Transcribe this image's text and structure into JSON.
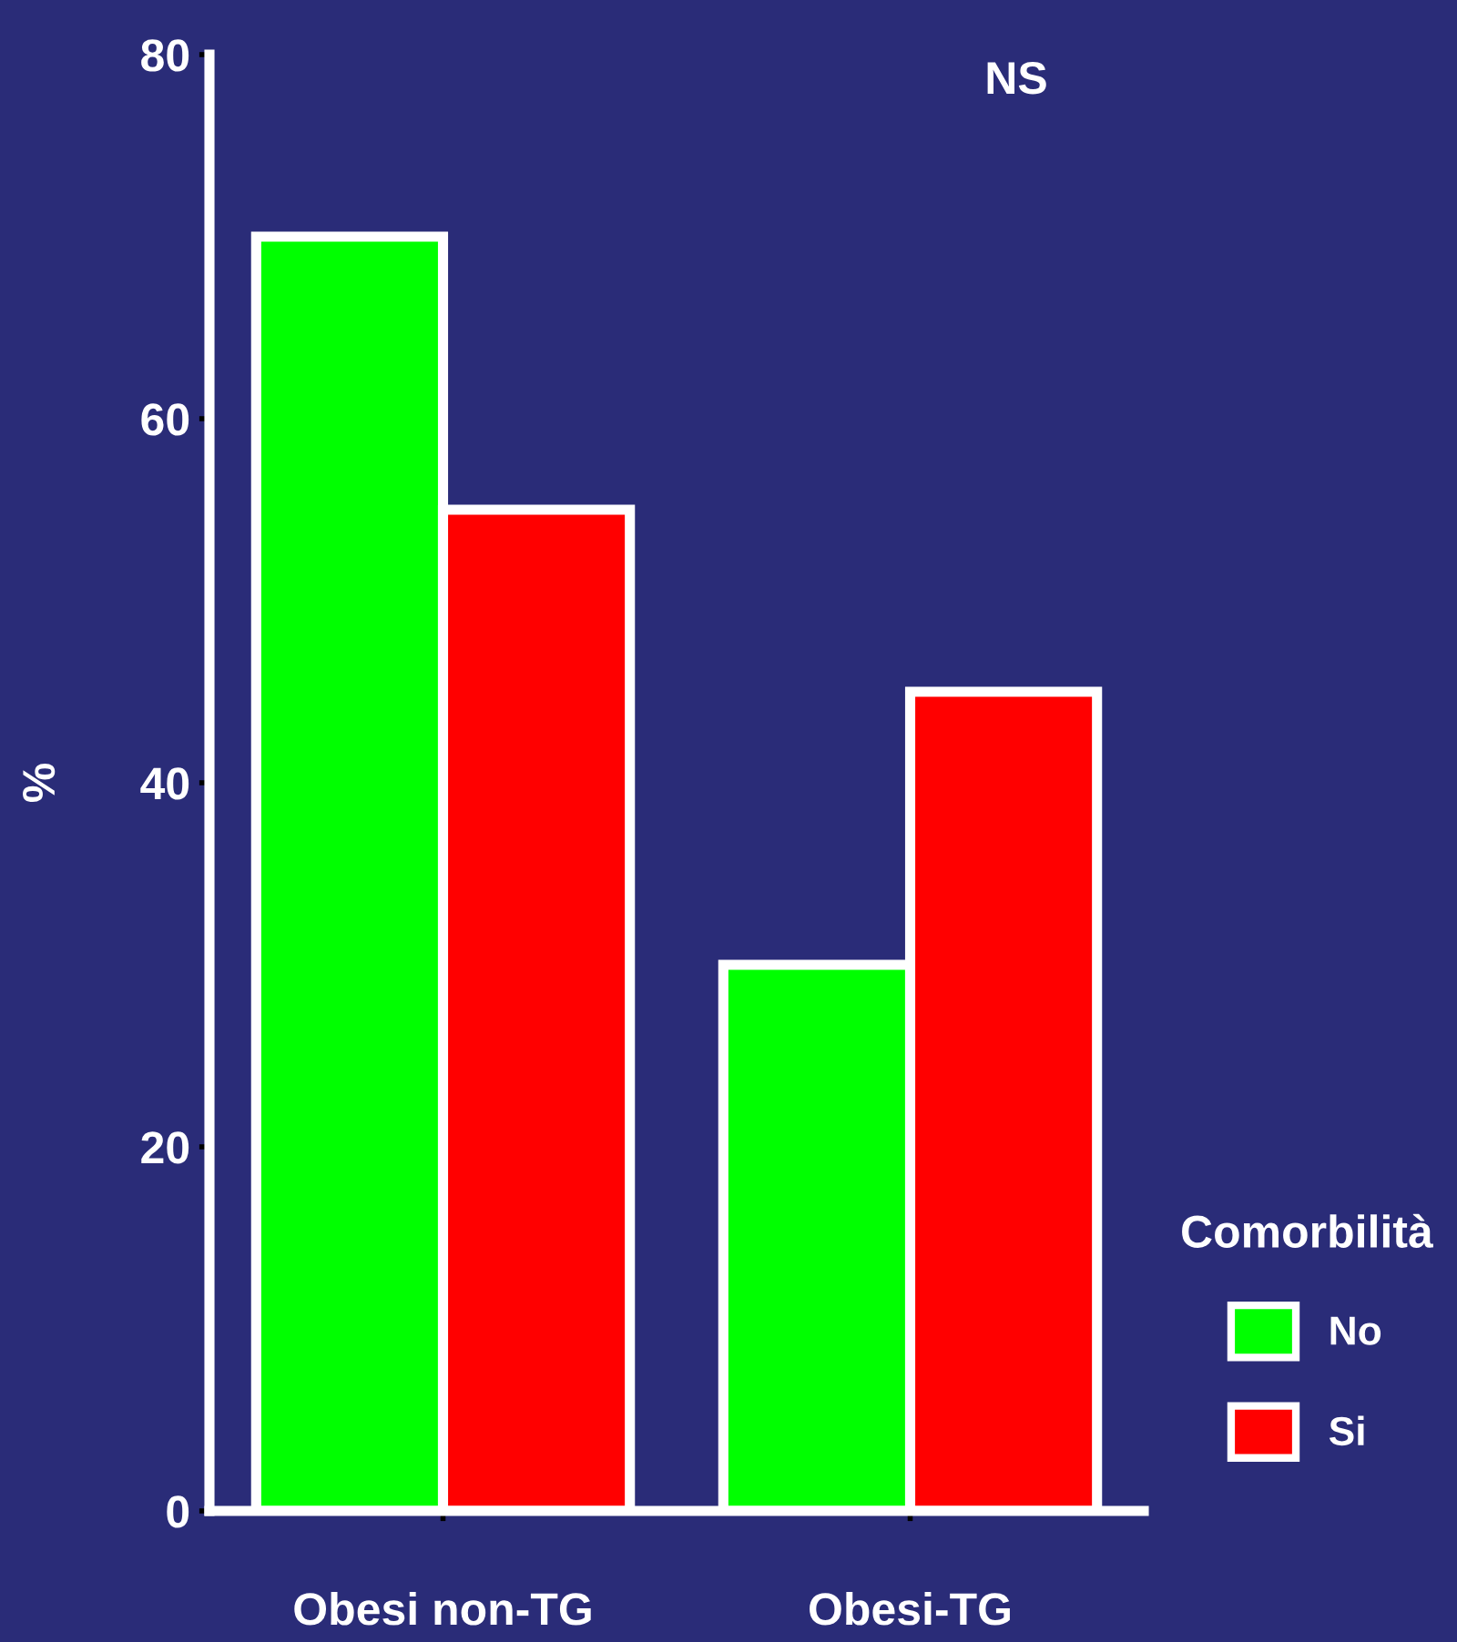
{
  "chart_data": {
    "type": "bar",
    "categories": [
      "Obesi non-TG",
      "Obesi-TG"
    ],
    "series": [
      {
        "name": "No",
        "color": "#00ff00",
        "values": [
          70,
          30
        ]
      },
      {
        "name": "Si",
        "color": "#ff0000",
        "values": [
          55,
          45
        ]
      }
    ],
    "ylabel": "%",
    "legend_title": "Comorbilità",
    "legend": "right",
    "annotations": [
      "NS"
    ],
    "ylim": [
      0,
      80
    ],
    "yticks": [
      0,
      20,
      40,
      60,
      80
    ],
    "grid": false
  }
}
